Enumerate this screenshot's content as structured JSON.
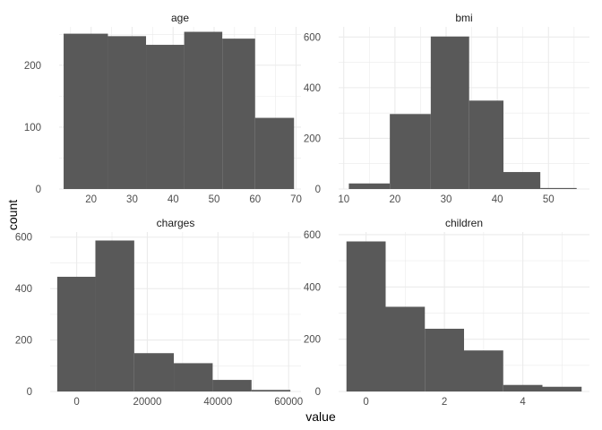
{
  "chart_data": {
    "type": "bar",
    "xlabel": "value",
    "ylabel": "count",
    "grid": true,
    "colors": {
      "bar": "#595959",
      "grid": "#ebebeb",
      "background": "#ffffff"
    },
    "panels": [
      {
        "id": "age",
        "strip": "age",
        "bins": [
          {
            "x0": 13.3,
            "x1": 24.1,
            "count": 251
          },
          {
            "x0": 24.1,
            "x1": 33.4,
            "count": 247
          },
          {
            "x0": 33.4,
            "x1": 42.7,
            "count": 233
          },
          {
            "x0": 42.7,
            "x1": 52.0,
            "count": 254
          },
          {
            "x0": 52.0,
            "x1": 60.0,
            "count": 243
          },
          {
            "x0": 60.0,
            "x1": 69.5,
            "count": 115
          }
        ],
        "xlim": [
          12.2,
          71.2
        ],
        "ylim": [
          0,
          262
        ],
        "xticks": [
          20,
          30,
          40,
          50,
          60,
          70
        ],
        "xtick_labels": [
          "20",
          "30",
          "40",
          "50",
          "60",
          "70"
        ],
        "yticks": [
          0,
          100,
          200
        ],
        "ytick_labels": [
          "0",
          "100",
          "200"
        ]
      },
      {
        "id": "bmi",
        "strip": "bmi",
        "bins": [
          {
            "x0": 11.0,
            "x1": 19.0,
            "count": 22
          },
          {
            "x0": 19.0,
            "x1": 27.0,
            "count": 296
          },
          {
            "x0": 27.0,
            "x1": 34.5,
            "count": 602
          },
          {
            "x0": 34.5,
            "x1": 41.2,
            "count": 349
          },
          {
            "x0": 41.2,
            "x1": 48.4,
            "count": 67
          },
          {
            "x0": 48.4,
            "x1": 55.5,
            "count": 4
          }
        ],
        "xlim": [
          9.0,
          58.0
        ],
        "ylim": [
          0,
          640
        ],
        "xticks": [
          10,
          20,
          30,
          40,
          50
        ],
        "xtick_labels": [
          "10",
          "20",
          "30",
          "40",
          "50"
        ],
        "yticks": [
          0,
          200,
          400,
          600
        ],
        "ytick_labels": [
          "0",
          "200",
          "400",
          "600"
        ]
      },
      {
        "id": "charges",
        "strip": "charges",
        "bins": [
          {
            "x0": -5500,
            "x1": 5300,
            "count": 446
          },
          {
            "x0": 5300,
            "x1": 16300,
            "count": 587
          },
          {
            "x0": 16300,
            "x1": 27500,
            "count": 149
          },
          {
            "x0": 27500,
            "x1": 38500,
            "count": 110
          },
          {
            "x0": 38500,
            "x1": 49500,
            "count": 45
          },
          {
            "x0": 49500,
            "x1": 60500,
            "count": 6
          }
        ],
        "xlim": [
          -7500,
          63500
        ],
        "ylim": [
          0,
          620
        ],
        "xticks": [
          0,
          20000,
          40000,
          60000
        ],
        "xtick_labels": [
          "0",
          "20000",
          "40000",
          "60000"
        ],
        "yticks": [
          0,
          200,
          400,
          600
        ],
        "ytick_labels": [
          "0",
          "200",
          "400",
          "600"
        ]
      },
      {
        "id": "children",
        "strip": "children",
        "bins": [
          {
            "x0": -0.5,
            "x1": 0.5,
            "count": 574
          },
          {
            "x0": 0.5,
            "x1": 1.5,
            "count": 324
          },
          {
            "x0": 1.5,
            "x1": 2.5,
            "count": 240
          },
          {
            "x0": 2.5,
            "x1": 3.5,
            "count": 157
          },
          {
            "x0": 3.5,
            "x1": 4.5,
            "count": 25
          },
          {
            "x0": 4.5,
            "x1": 5.5,
            "count": 18
          }
        ],
        "xlim": [
          -0.7,
          5.7
        ],
        "ylim": [
          0,
          610
        ],
        "xticks": [
          0,
          2,
          4
        ],
        "xtick_labels": [
          "0",
          "2",
          "4"
        ],
        "yticks": [
          0,
          200,
          400,
          600
        ],
        "ytick_labels": [
          "0",
          "200",
          "400",
          "600"
        ]
      }
    ]
  }
}
